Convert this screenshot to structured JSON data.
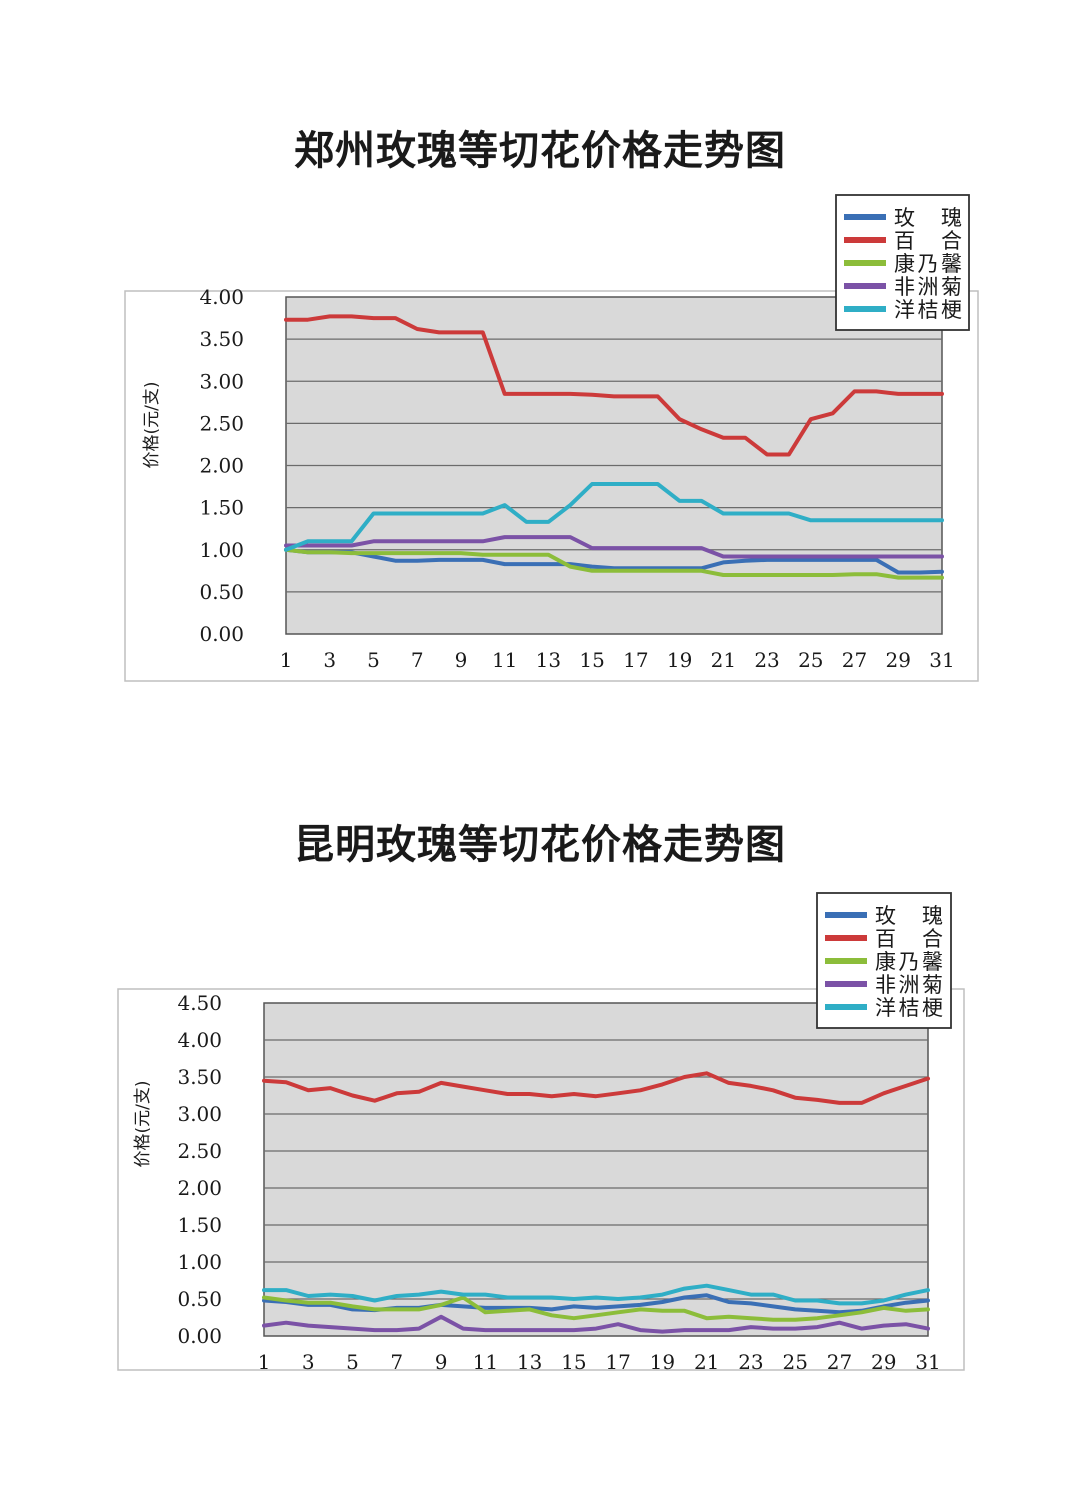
{
  "chart_data": [
    {
      "type": "line",
      "title": "郑州玫瑰等切花价格走势图",
      "xlabel": "",
      "ylabel": "价格(元/支)",
      "ylim": [
        0,
        4
      ],
      "yticks": [
        "0.00",
        "0.50",
        "1.00",
        "1.50",
        "2.00",
        "2.50",
        "3.00",
        "3.50",
        "4.00"
      ],
      "xticks": [
        1,
        3,
        5,
        7,
        9,
        11,
        13,
        15,
        17,
        19,
        21,
        23,
        25,
        27,
        29,
        31
      ],
      "x": [
        1,
        2,
        3,
        4,
        5,
        6,
        7,
        8,
        9,
        10,
        11,
        12,
        13,
        14,
        15,
        16,
        17,
        18,
        19,
        20,
        21,
        22,
        23,
        24,
        25,
        26,
        27,
        28,
        29,
        30,
        31
      ],
      "grid": true,
      "legend_position": "top-right",
      "series": [
        {
          "name": "玫　瑰",
          "color": "#3a6fb5",
          "values": [
            1.0,
            0.97,
            0.97,
            0.97,
            0.92,
            0.87,
            0.87,
            0.88,
            0.88,
            0.88,
            0.83,
            0.83,
            0.83,
            0.83,
            0.8,
            0.78,
            0.78,
            0.78,
            0.78,
            0.78,
            0.85,
            0.87,
            0.88,
            0.88,
            0.88,
            0.88,
            0.88,
            0.88,
            0.73,
            0.73,
            0.74
          ]
        },
        {
          "name": "百　合",
          "color": "#cc3a3a",
          "values": [
            3.73,
            3.73,
            3.77,
            3.77,
            3.75,
            3.75,
            3.62,
            3.58,
            3.58,
            3.58,
            2.85,
            2.85,
            2.85,
            2.85,
            2.84,
            2.82,
            2.82,
            2.82,
            2.55,
            2.43,
            2.33,
            2.33,
            2.13,
            2.13,
            2.55,
            2.62,
            2.88,
            2.88,
            2.85,
            2.85,
            2.85
          ]
        },
        {
          "name": "康乃馨",
          "color": "#8cbd3a",
          "values": [
            1.0,
            0.97,
            0.97,
            0.96,
            0.96,
            0.96,
            0.96,
            0.96,
            0.96,
            0.94,
            0.94,
            0.94,
            0.94,
            0.8,
            0.75,
            0.75,
            0.75,
            0.75,
            0.75,
            0.75,
            0.7,
            0.7,
            0.7,
            0.7,
            0.7,
            0.7,
            0.71,
            0.71,
            0.67,
            0.67,
            0.67
          ]
        },
        {
          "name": "非洲菊",
          "color": "#7b52a6",
          "values": [
            1.05,
            1.05,
            1.05,
            1.05,
            1.1,
            1.1,
            1.1,
            1.1,
            1.1,
            1.1,
            1.15,
            1.15,
            1.15,
            1.15,
            1.02,
            1.02,
            1.02,
            1.02,
            1.02,
            1.02,
            0.92,
            0.92,
            0.92,
            0.92,
            0.92,
            0.92,
            0.92,
            0.92,
            0.92,
            0.92,
            0.92
          ]
        },
        {
          "name": "洋桔梗",
          "color": "#2faec6",
          "values": [
            1.0,
            1.1,
            1.1,
            1.1,
            1.43,
            1.43,
            1.43,
            1.43,
            1.43,
            1.43,
            1.53,
            1.33,
            1.33,
            1.53,
            1.78,
            1.78,
            1.78,
            1.78,
            1.58,
            1.58,
            1.43,
            1.43,
            1.43,
            1.43,
            1.35,
            1.35,
            1.35,
            1.35,
            1.35,
            1.35,
            1.35
          ]
        }
      ]
    },
    {
      "type": "line",
      "title": "昆明玫瑰等切花价格走势图",
      "xlabel": "",
      "ylabel": "价格(元/支)",
      "ylim": [
        0,
        4.5
      ],
      "yticks": [
        "0.00",
        "0.50",
        "1.00",
        "1.50",
        "2.00",
        "2.50",
        "3.00",
        "3.50",
        "4.00",
        "4.50"
      ],
      "xticks": [
        1,
        3,
        5,
        7,
        9,
        11,
        13,
        15,
        17,
        19,
        21,
        23,
        25,
        27,
        29,
        31
      ],
      "x": [
        1,
        2,
        3,
        4,
        5,
        6,
        7,
        8,
        9,
        10,
        11,
        12,
        13,
        14,
        15,
        16,
        17,
        18,
        19,
        20,
        21,
        22,
        23,
        24,
        25,
        26,
        27,
        28,
        29,
        30,
        31
      ],
      "grid": true,
      "legend_position": "top-right",
      "series": [
        {
          "name": "玫　瑰",
          "color": "#3a6fb5",
          "values": [
            0.48,
            0.46,
            0.42,
            0.42,
            0.36,
            0.35,
            0.38,
            0.38,
            0.42,
            0.4,
            0.38,
            0.38,
            0.38,
            0.36,
            0.4,
            0.38,
            0.4,
            0.42,
            0.46,
            0.52,
            0.55,
            0.46,
            0.44,
            0.4,
            0.36,
            0.34,
            0.32,
            0.34,
            0.4,
            0.45,
            0.48
          ]
        },
        {
          "name": "百　合",
          "color": "#cc3a3a",
          "values": [
            3.45,
            3.43,
            3.32,
            3.35,
            3.25,
            3.18,
            3.28,
            3.3,
            3.42,
            3.37,
            3.32,
            3.27,
            3.27,
            3.24,
            3.27,
            3.24,
            3.28,
            3.32,
            3.4,
            3.5,
            3.55,
            3.42,
            3.38,
            3.32,
            3.22,
            3.19,
            3.15,
            3.15,
            3.28,
            3.38,
            3.48
          ]
        },
        {
          "name": "康乃馨",
          "color": "#8cbd3a",
          "values": [
            0.52,
            0.48,
            0.45,
            0.45,
            0.4,
            0.36,
            0.36,
            0.36,
            0.42,
            0.52,
            0.32,
            0.34,
            0.36,
            0.28,
            0.24,
            0.28,
            0.32,
            0.36,
            0.34,
            0.34,
            0.24,
            0.26,
            0.24,
            0.22,
            0.22,
            0.24,
            0.28,
            0.32,
            0.38,
            0.34,
            0.36
          ]
        },
        {
          "name": "非洲菊",
          "color": "#7b52a6",
          "values": [
            0.14,
            0.18,
            0.14,
            0.12,
            0.1,
            0.08,
            0.08,
            0.1,
            0.26,
            0.1,
            0.08,
            0.08,
            0.08,
            0.08,
            0.08,
            0.1,
            0.16,
            0.08,
            0.06,
            0.08,
            0.08,
            0.08,
            0.12,
            0.1,
            0.1,
            0.12,
            0.18,
            0.1,
            0.14,
            0.16,
            0.1
          ]
        },
        {
          "name": "洋桔梗",
          "color": "#2faec6",
          "values": [
            0.62,
            0.62,
            0.54,
            0.56,
            0.54,
            0.48,
            0.54,
            0.56,
            0.6,
            0.56,
            0.56,
            0.52,
            0.52,
            0.52,
            0.5,
            0.52,
            0.5,
            0.52,
            0.56,
            0.64,
            0.68,
            0.62,
            0.56,
            0.56,
            0.48,
            0.48,
            0.44,
            0.44,
            0.48,
            0.56,
            0.62
          ]
        }
      ]
    }
  ]
}
